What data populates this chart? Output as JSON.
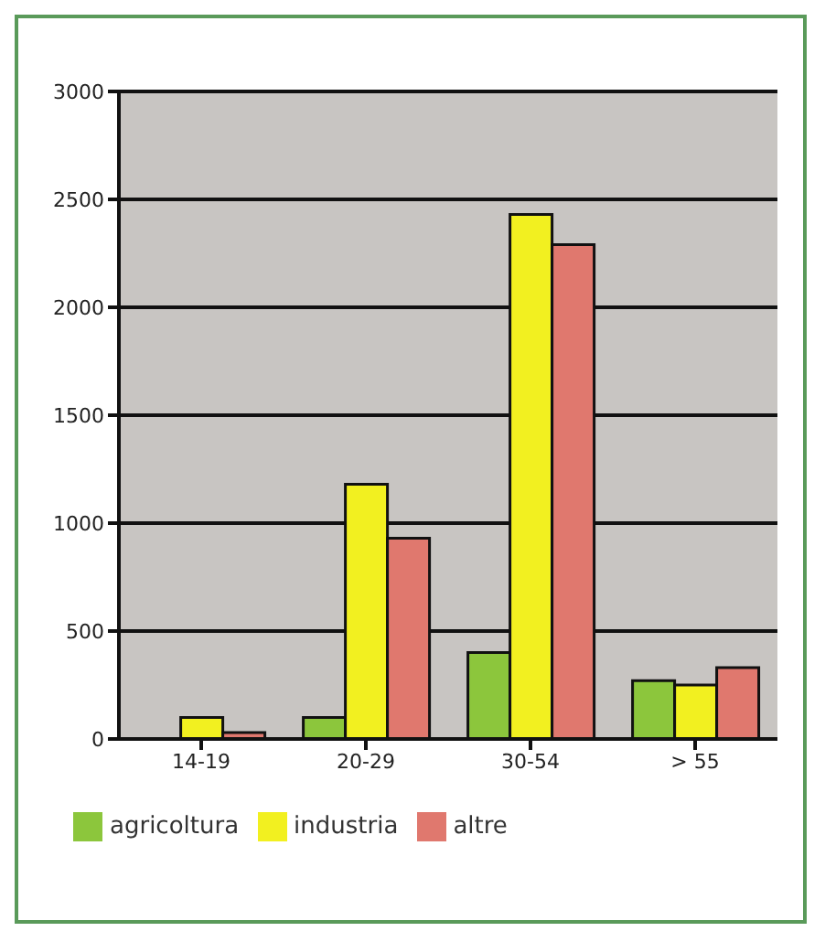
{
  "chart_data": {
    "type": "bar",
    "categories": [
      "14-19",
      "20-29",
      "30-54",
      "> 55"
    ],
    "series": [
      {
        "name": "agricoltura",
        "color": "#8cc63c",
        "values": [
          0,
          100,
          400,
          270
        ]
      },
      {
        "name": "industria",
        "color": "#f2f020",
        "values": [
          100,
          1180,
          2430,
          250
        ]
      },
      {
        "name": "altre",
        "color": "#e0786e",
        "values": [
          30,
          930,
          2290,
          330
        ]
      }
    ],
    "ylim": [
      0,
      3000
    ],
    "yticks": [
      0,
      500,
      1000,
      1500,
      2000,
      2500,
      3000
    ],
    "grid": "y",
    "legend": "bottom"
  }
}
